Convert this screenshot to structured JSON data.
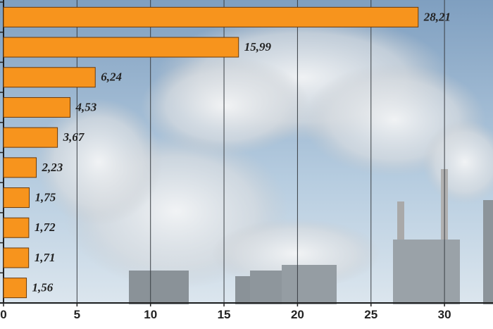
{
  "chart_data": {
    "type": "bar",
    "orientation": "horizontal",
    "values": [
      28.21,
      15.99,
      6.24,
      4.53,
      3.67,
      2.23,
      1.75,
      1.72,
      1.71,
      1.56
    ],
    "value_labels": [
      "28,21",
      "15,99",
      "6,24",
      "4,53",
      "3,67",
      "2,23",
      "1,75",
      "1,72",
      "1,71",
      "1,56"
    ],
    "color": "#f7941d",
    "xlim": [
      0,
      33.3
    ],
    "xticks": [
      0,
      5,
      10,
      15,
      20,
      25,
      30
    ],
    "grid": true
  }
}
